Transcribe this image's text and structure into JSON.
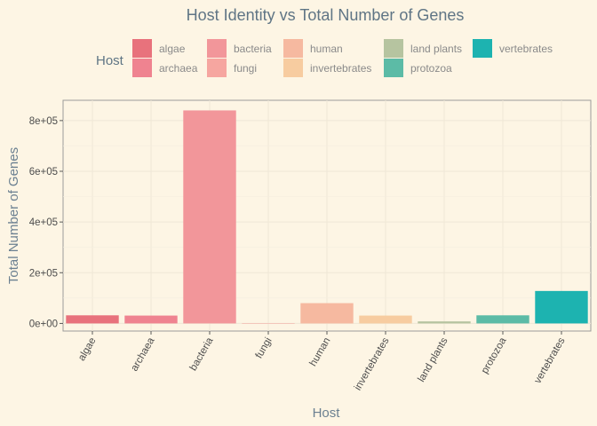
{
  "chart_data": {
    "type": "bar",
    "title": "Host Identity vs Total Number of Genes",
    "xlabel": "Host",
    "ylabel": "Total Number of Genes",
    "legend_title": "Host",
    "legend_position": "top",
    "categories": [
      "algae",
      "archaea",
      "bacteria",
      "fungi",
      "human",
      "invertebrates",
      "land plants",
      "protozoa",
      "vertebrates"
    ],
    "values": [
      32000,
      31000,
      840000,
      300,
      80000,
      31000,
      8000,
      32000,
      128000
    ],
    "colors": [
      "#e8727c",
      "#ef8390",
      "#f2969a",
      "#f6a6a0",
      "#f6b9a0",
      "#f7cca0",
      "#b6c4a0",
      "#5cbba6",
      "#1db3b0"
    ],
    "ylim": [
      -30000,
      880000
    ],
    "yticks": [
      0,
      200000,
      400000,
      600000,
      800000
    ],
    "ytick_labels": [
      "0e+00",
      "2e+05",
      "4e+05",
      "6e+05",
      "8e+05"
    ],
    "grid": true
  }
}
